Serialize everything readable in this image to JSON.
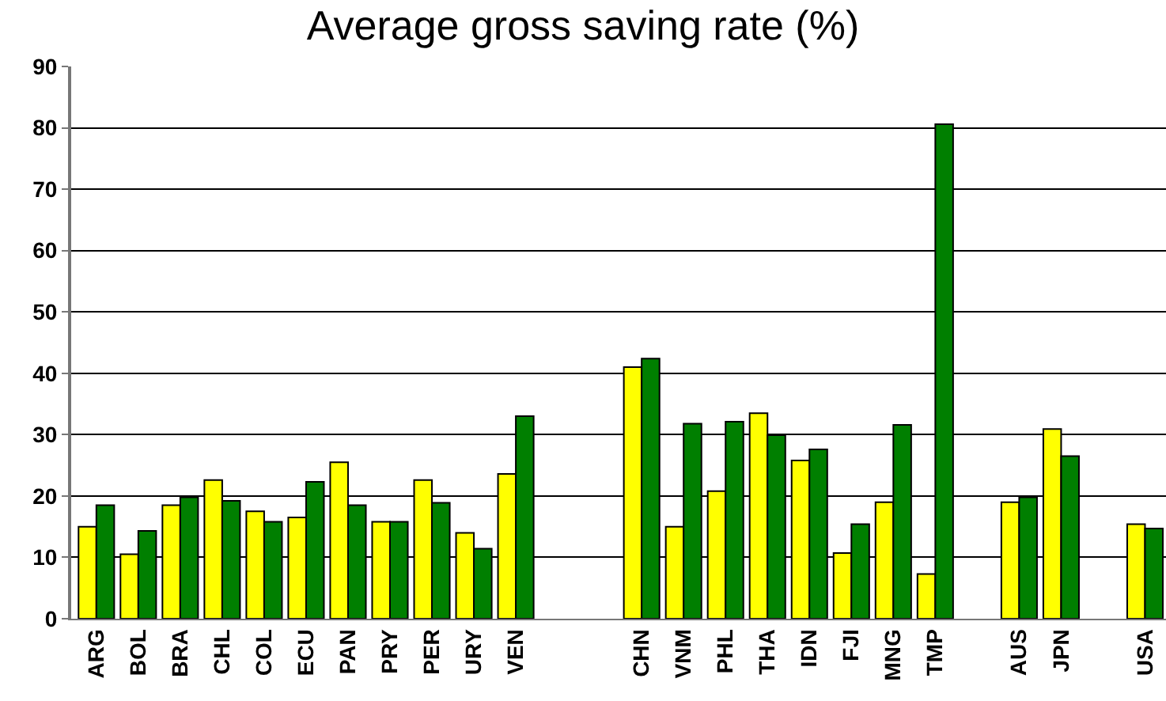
{
  "chart_data": {
    "type": "bar",
    "title": "Average gross saving rate (%)",
    "categories": [
      "ARG",
      "BOL",
      "BRA",
      "CHL",
      "COL",
      "ECU",
      "PAN",
      "PRY",
      "PER",
      "URY",
      "VEN",
      null,
      null,
      "CHN",
      "VNM",
      "PHL",
      "THA",
      "IDN",
      "FJI",
      "MNG",
      "TMP",
      null,
      "AUS",
      "JPN",
      null,
      "USA"
    ],
    "series": [
      {
        "color": "#ffff00",
        "values": [
          15,
          10.5,
          18.5,
          22.6,
          17.5,
          16.5,
          25.5,
          15.8,
          22.6,
          14,
          23.6,
          null,
          null,
          41,
          15,
          20.8,
          33.5,
          25.8,
          10.7,
          19,
          7.3,
          null,
          19,
          30.9,
          null,
          15.4
        ]
      },
      {
        "color": "#007f00",
        "values": [
          18.5,
          14.3,
          19.8,
          19.2,
          15.8,
          22.3,
          18.5,
          15.8,
          18.9,
          11.4,
          33,
          null,
          null,
          42.4,
          31.8,
          32.1,
          29.9,
          27.6,
          15.4,
          31.6,
          80.6,
          null,
          19.8,
          26.5,
          null,
          14.7
        ]
      }
    ],
    "ylim": [
      0,
      90
    ],
    "yticks": [
      0,
      10,
      20,
      30,
      40,
      50,
      60,
      70,
      80,
      90
    ],
    "grid": "y"
  }
}
